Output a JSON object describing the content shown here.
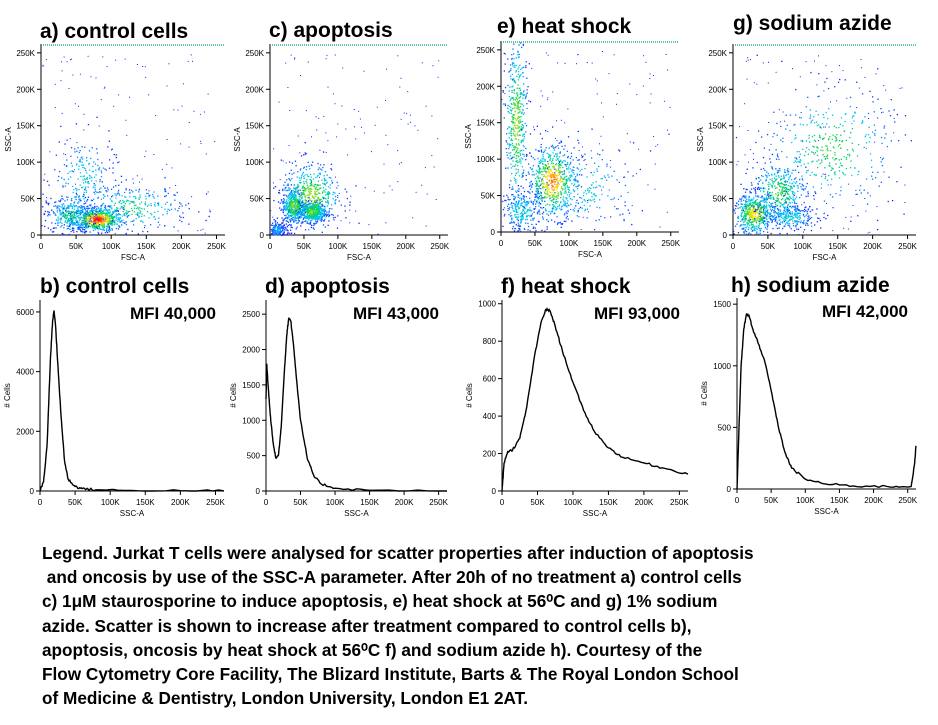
{
  "colors": {
    "axis": "#000000",
    "density_low": "#1020ff",
    "density_high": "#ff0000",
    "histogram_line": "#000000",
    "top_line": "#00a060"
  },
  "chart_data": [
    {
      "id": "a",
      "type": "scatter",
      "title": "a) control cells",
      "xlabel": "FSC-A",
      "ylabel": "SSC-A",
      "xlim": [
        0,
        262144
      ],
      "ylim": [
        0,
        262144
      ],
      "x_ticks": [
        "0",
        "50K",
        "100K",
        "150K",
        "200K",
        "250K"
      ],
      "y_ticks": [
        "0",
        "50K",
        "100K",
        "150K",
        "200K",
        "250K"
      ],
      "populations": [
        {
          "x": 80000,
          "y": 22000,
          "sx": 18000,
          "sy": 8000,
          "weight": 0.45
        },
        {
          "x": 40000,
          "y": 28000,
          "sx": 16000,
          "sy": 12000,
          "weight": 0.2
        },
        {
          "x": 130000,
          "y": 38000,
          "sx": 40000,
          "sy": 16000,
          "weight": 0.2
        },
        {
          "x": 60000,
          "y": 75000,
          "sx": 22000,
          "sy": 30000,
          "weight": 0.15
        }
      ]
    },
    {
      "id": "c",
      "type": "scatter",
      "title": "c) apoptosis",
      "xlabel": "FSC-A",
      "ylabel": "SSC-A",
      "xlim": [
        0,
        262144
      ],
      "ylim": [
        0,
        262144
      ],
      "x_ticks": [
        "0",
        "50K",
        "100K",
        "150K",
        "200K",
        "250K"
      ],
      "y_ticks": [
        "0",
        "50K",
        "100K",
        "150K",
        "200K",
        "250K"
      ],
      "populations": [
        {
          "x": 35000,
          "y": 40000,
          "sx": 9000,
          "sy": 12000,
          "weight": 0.3
        },
        {
          "x": 62000,
          "y": 32000,
          "sx": 10000,
          "sy": 7000,
          "weight": 0.3
        },
        {
          "x": 10000,
          "y": 8000,
          "sx": 6000,
          "sy": 5000,
          "weight": 0.1
        },
        {
          "x": 60000,
          "y": 55000,
          "sx": 22000,
          "sy": 22000,
          "weight": 0.3
        }
      ]
    },
    {
      "id": "e",
      "type": "scatter",
      "title": "e) heat shock",
      "xlabel": "FSC-A",
      "ylabel": "SSC-A",
      "xlim": [
        0,
        262144
      ],
      "ylim": [
        0,
        262144
      ],
      "x_ticks": [
        "0",
        "50K",
        "100K",
        "150K",
        "200K",
        "250K"
      ],
      "y_ticks": [
        "0",
        "50K",
        "100K",
        "150K",
        "200K",
        "250K"
      ],
      "populations": [
        {
          "x": 22000,
          "y": 150000,
          "sx": 8000,
          "sy": 60000,
          "weight": 0.3
        },
        {
          "x": 75000,
          "y": 70000,
          "sx": 18000,
          "sy": 25000,
          "weight": 0.4
        },
        {
          "x": 30000,
          "y": 30000,
          "sx": 15000,
          "sy": 15000,
          "weight": 0.15
        },
        {
          "x": 120000,
          "y": 60000,
          "sx": 40000,
          "sy": 30000,
          "weight": 0.15
        }
      ]
    },
    {
      "id": "g",
      "type": "scatter",
      "title": "g) sodium azide",
      "xlabel": "FSC-A",
      "ylabel": "SSC-A",
      "xlim": [
        0,
        262144
      ],
      "ylim": [
        0,
        262144
      ],
      "x_ticks": [
        "0",
        "50K",
        "100K",
        "150K",
        "200K",
        "250K"
      ],
      "y_ticks": [
        "0",
        "50K",
        "100K",
        "150K",
        "200K",
        "250K"
      ],
      "populations": [
        {
          "x": 30000,
          "y": 30000,
          "sx": 14000,
          "sy": 14000,
          "weight": 0.35
        },
        {
          "x": 65000,
          "y": 60000,
          "sx": 20000,
          "sy": 20000,
          "weight": 0.25
        },
        {
          "x": 140000,
          "y": 120000,
          "sx": 45000,
          "sy": 40000,
          "weight": 0.25
        },
        {
          "x": 80000,
          "y": 25000,
          "sx": 20000,
          "sy": 8000,
          "weight": 0.15
        }
      ]
    },
    {
      "id": "b",
      "type": "line",
      "title": "b) control cells",
      "annotation": "MFI 40,000",
      "xlabel": "SSC-A",
      "ylabel": "# Cells",
      "xlim": [
        0,
        262144
      ],
      "ylim": [
        0,
        6400
      ],
      "x_ticks": [
        "0",
        "50K",
        "100K",
        "150K",
        "200K",
        "250K"
      ],
      "y_ticks": [
        "0",
        "2000",
        "4000",
        "6000"
      ],
      "x": [
        0,
        5000,
        10000,
        15000,
        18000,
        20000,
        22000,
        25000,
        30000,
        35000,
        40000,
        50000,
        60000,
        80000,
        120000,
        200000,
        262144
      ],
      "y": [
        0,
        300,
        1500,
        4500,
        5700,
        6050,
        5600,
        4400,
        2500,
        1000,
        400,
        150,
        80,
        40,
        20,
        10,
        0
      ]
    },
    {
      "id": "d",
      "type": "line",
      "title": "d) apoptosis",
      "annotation": "MFI 43,000",
      "xlabel": "SSC-A",
      "ylabel": "# Cells",
      "xlim": [
        0,
        262144
      ],
      "ylim": [
        0,
        2700
      ],
      "x_ticks": [
        "0",
        "50K",
        "100K",
        "150K",
        "200K",
        "250K"
      ],
      "y_ticks": [
        "0",
        "500",
        "1000",
        "1500",
        "2000",
        "2500"
      ],
      "x": [
        0,
        1000,
        3000,
        6000,
        10000,
        14000,
        18000,
        22000,
        26000,
        30000,
        33000,
        36000,
        40000,
        45000,
        50000,
        60000,
        70000,
        80000,
        100000,
        150000,
        262144
      ],
      "y": [
        1300,
        1800,
        1500,
        1100,
        700,
        470,
        500,
        900,
        1600,
        2200,
        2450,
        2400,
        2050,
        1500,
        1000,
        450,
        200,
        100,
        40,
        10,
        0
      ]
    },
    {
      "id": "f",
      "type": "line",
      "title": "f) heat shock",
      "annotation": "MFI 93,000",
      "xlabel": "SSC-A",
      "ylabel": "# Cells",
      "xlim": [
        0,
        262144
      ],
      "ylim": [
        0,
        1020
      ],
      "x_ticks": [
        "0",
        "50K",
        "100K",
        "150K",
        "200K",
        "250K"
      ],
      "y_ticks": [
        "0",
        "200",
        "400",
        "600",
        "800",
        "1000"
      ],
      "x": [
        0,
        3000,
        8000,
        15000,
        25000,
        35000,
        45000,
        55000,
        62000,
        68000,
        75000,
        85000,
        100000,
        115000,
        130000,
        150000,
        170000,
        200000,
        230000,
        262144
      ],
      "y": [
        0,
        150,
        210,
        220,
        280,
        450,
        700,
        900,
        970,
        960,
        880,
        750,
        580,
        430,
        320,
        230,
        180,
        150,
        120,
        90
      ]
    },
    {
      "id": "h",
      "type": "line",
      "title": "h) sodium azide",
      "annotation": "MFI 42,000",
      "xlabel": "SSC-A",
      "ylabel": "# Cells",
      "xlim": [
        0,
        262144
      ],
      "ylim": [
        0,
        1550
      ],
      "x_ticks": [
        "0",
        "50K",
        "100K",
        "150K",
        "200K",
        "250K"
      ],
      "y_ticks": [
        "0",
        "500",
        "1000",
        "1500"
      ],
      "x": [
        0,
        3000,
        6000,
        10000,
        14000,
        18000,
        24000,
        30000,
        40000,
        50000,
        60000,
        70000,
        80000,
        100000,
        130000,
        170000,
        220000,
        255000,
        260000,
        262144
      ],
      "y": [
        0,
        500,
        1000,
        1300,
        1420,
        1400,
        1280,
        1200,
        1050,
        800,
        520,
        300,
        170,
        80,
        40,
        25,
        20,
        20,
        200,
        350
      ]
    }
  ],
  "legend": {
    "lines": [
      "Legend. Jurkat T cells were analysed for scatter properties after induction of apoptosis",
      " and oncosis by use of the SSC-A parameter. After 20h of no treatment a) control cells",
      "c) 1μM staurosporine to induce apoptosis, e) heat shock at 56⁰C and g) 1% sodium",
      "azide. Scatter is shown to increase after treatment compared to control cells b),",
      "apoptosis, oncosis by heat shock at 56⁰C f) and sodium azide h). Courtesy of the",
      "Flow Cytometry Core Facility, The Blizard Institute, Barts & The Royal London School",
      "of Medicine & Dentistry, London University, London E1 2AT."
    ]
  }
}
